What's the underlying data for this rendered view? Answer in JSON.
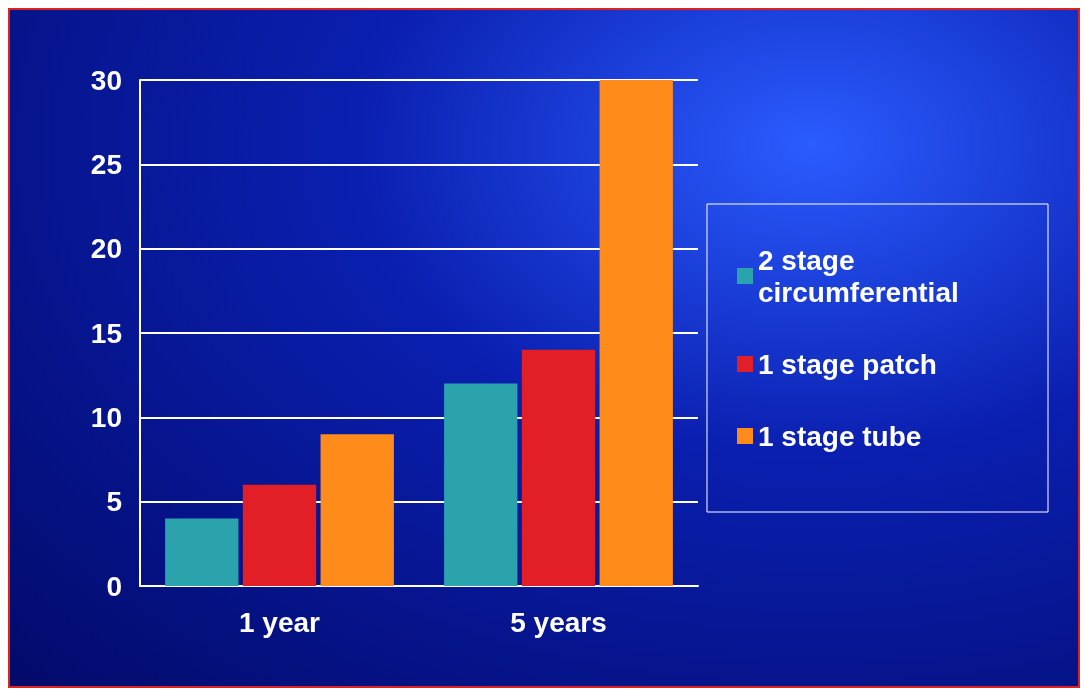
{
  "chart_data": {
    "type": "bar",
    "categories": [
      "1 year",
      "5 years"
    ],
    "series": [
      {
        "name": "2 stage circumferential",
        "color": "#2aa3ad",
        "values": [
          4,
          12
        ]
      },
      {
        "name": "1 stage patch",
        "color": "#e21f26",
        "values": [
          6,
          14
        ]
      },
      {
        "name": "1 stage tube",
        "color": "#ff8c1a",
        "values": [
          9,
          30
        ]
      }
    ],
    "ylim": [
      0,
      30
    ],
    "yticks": [
      0,
      5,
      10,
      15,
      20,
      25,
      30
    ],
    "grid": "y",
    "legend": "right"
  }
}
